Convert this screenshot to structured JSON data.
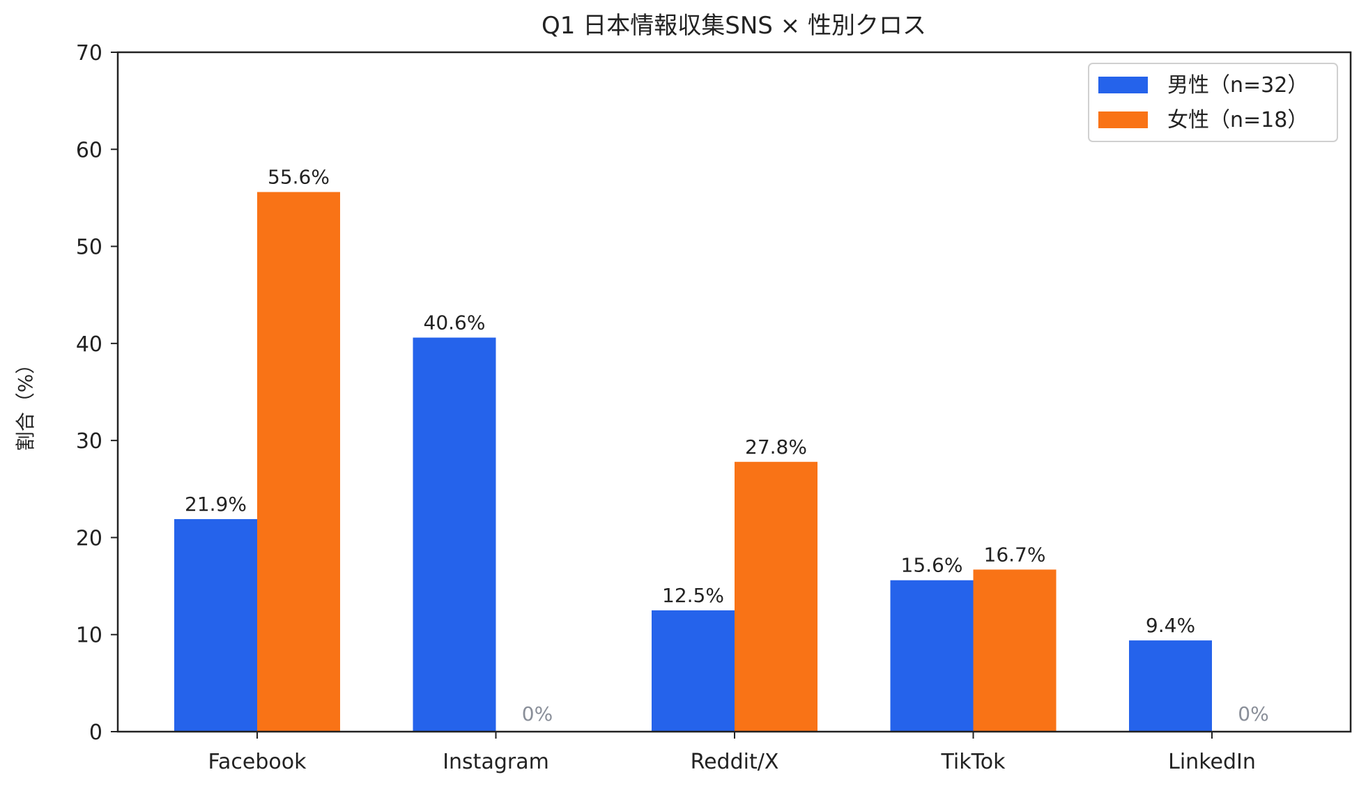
{
  "chart_data": {
    "type": "bar",
    "title": "Q1 日本情報収集SNS × 性別クロス",
    "xlabel": "",
    "ylabel": "割合（%）",
    "ylim": [
      0,
      70
    ],
    "yticks": [
      0,
      10,
      20,
      30,
      40,
      50,
      60,
      70
    ],
    "grid": false,
    "legend_position": "top-right",
    "categories": [
      "Facebook",
      "Instagram",
      "Reddit/X",
      "TikTok",
      "LinkedIn"
    ],
    "series": [
      {
        "name": "男性（n=32）",
        "color": "#2563eb",
        "values": [
          21.9,
          40.6,
          12.5,
          15.6,
          9.4
        ],
        "labels": [
          "21.9%",
          "40.6%",
          "12.5%",
          "15.6%",
          "9.4%"
        ]
      },
      {
        "name": "女性（n=18）",
        "color": "#f97316",
        "values": [
          55.6,
          0,
          27.8,
          16.7,
          0
        ],
        "labels": [
          "55.6%",
          "0%",
          "27.8%",
          "16.7%",
          "0%"
        ]
      }
    ],
    "zero_label_color": "#8a8f99"
  }
}
